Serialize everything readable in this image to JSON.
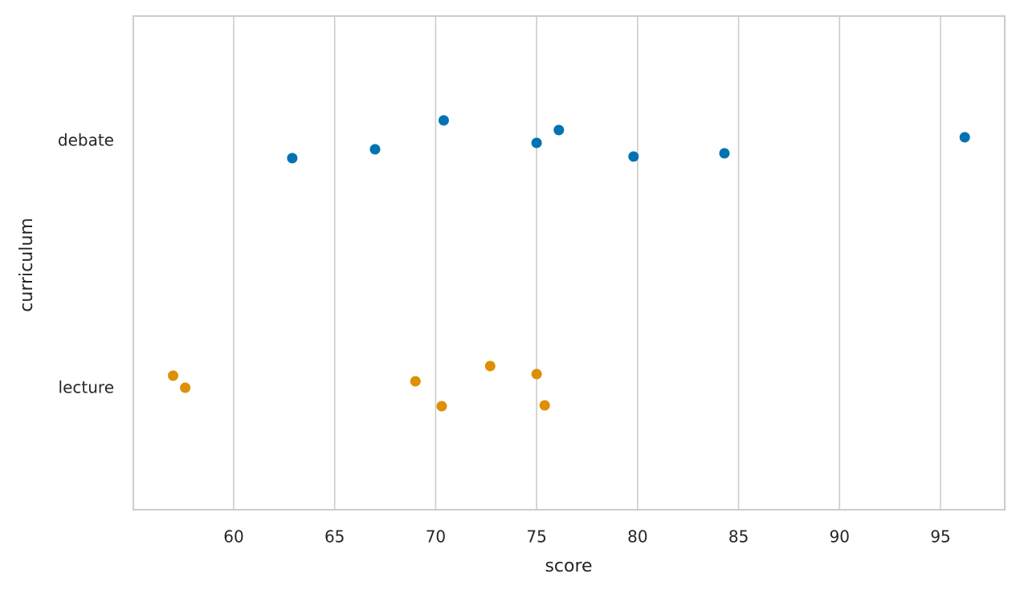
{
  "chart_data": {
    "type": "strip",
    "x_label": "score",
    "y_label": "curriculum",
    "categories": [
      "debate",
      "lecture"
    ],
    "colors": [
      "#0173b2",
      "#de8f05"
    ],
    "values": [
      [
        62.9,
        67.0,
        70.4,
        75.0,
        76.1,
        79.8,
        84.3,
        96.2
      ],
      [
        57.0,
        57.6,
        69.0,
        70.3,
        72.7,
        75.0,
        75.4
      ]
    ],
    "xlim": [
      55.03,
      98.18
    ],
    "xticks": [
      60,
      65,
      70,
      75,
      80,
      85,
      90,
      95
    ],
    "grid": true
  }
}
